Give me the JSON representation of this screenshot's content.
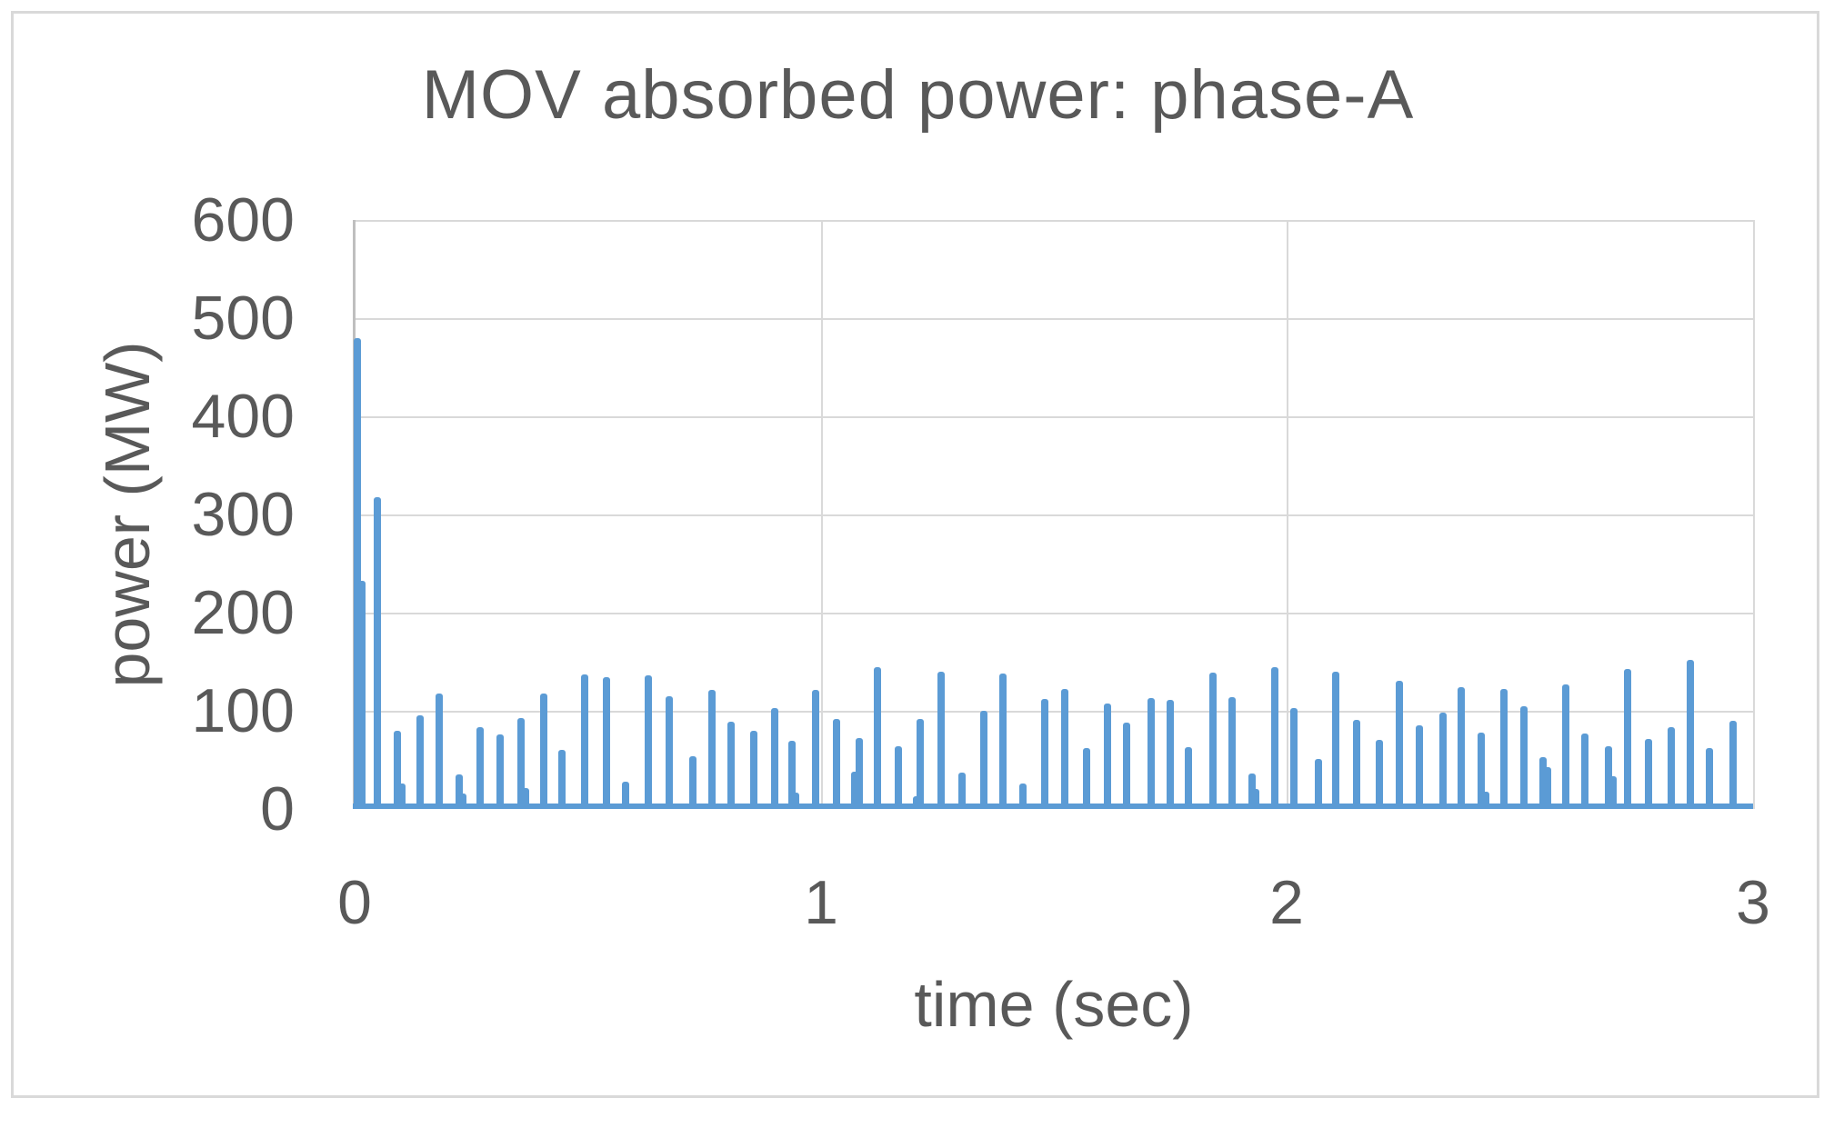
{
  "chart_data": {
    "type": "bar",
    "title": "MOV absorbed power: phase-A",
    "xlabel": "time (sec)",
    "ylabel": "power (MW)",
    "xlim": [
      0,
      3
    ],
    "ylim": [
      0,
      600
    ],
    "x_ticks": [
      0,
      1,
      2,
      3
    ],
    "y_ticks": [
      0,
      100,
      200,
      300,
      400,
      500,
      600
    ],
    "grid": true,
    "legend_position": "none",
    "bar_color": "#5B9BD5",
    "series": [
      {
        "name": "MOV absorbed power phase-A",
        "points": [
          {
            "t": 0.006,
            "p": 480
          },
          {
            "t": 0.016,
            "p": 232
          },
          {
            "t": 0.049,
            "p": 318
          },
          {
            "t": 0.092,
            "p": 80
          },
          {
            "t": 0.102,
            "p": 26
          },
          {
            "t": 0.14,
            "p": 95
          },
          {
            "t": 0.181,
            "p": 118
          },
          {
            "t": 0.224,
            "p": 35
          },
          {
            "t": 0.233,
            "p": 16
          },
          {
            "t": 0.269,
            "p": 83
          },
          {
            "t": 0.312,
            "p": 76
          },
          {
            "t": 0.357,
            "p": 93
          },
          {
            "t": 0.366,
            "p": 21
          },
          {
            "t": 0.406,
            "p": 118
          },
          {
            "t": 0.445,
            "p": 60
          },
          {
            "t": 0.494,
            "p": 137
          },
          {
            "t": 0.54,
            "p": 134
          },
          {
            "t": 0.581,
            "p": 28
          },
          {
            "t": 0.63,
            "p": 136
          },
          {
            "t": 0.675,
            "p": 115
          },
          {
            "t": 0.726,
            "p": 54
          },
          {
            "t": 0.767,
            "p": 121
          },
          {
            "t": 0.808,
            "p": 89
          },
          {
            "t": 0.856,
            "p": 80
          },
          {
            "t": 0.901,
            "p": 103
          },
          {
            "t": 0.938,
            "p": 69
          },
          {
            "t": 0.947,
            "p": 17
          },
          {
            "t": 0.989,
            "p": 121
          },
          {
            "t": 1.034,
            "p": 92
          },
          {
            "t": 1.073,
            "p": 38
          },
          {
            "t": 1.082,
            "p": 72
          },
          {
            "t": 1.121,
            "p": 144
          },
          {
            "t": 1.166,
            "p": 64
          },
          {
            "t": 1.205,
            "p": 13
          },
          {
            "t": 1.213,
            "p": 92
          },
          {
            "t": 1.258,
            "p": 140
          },
          {
            "t": 1.303,
            "p": 37
          },
          {
            "t": 1.35,
            "p": 100
          },
          {
            "t": 1.391,
            "p": 138
          },
          {
            "t": 1.434,
            "p": 26
          },
          {
            "t": 1.48,
            "p": 112
          },
          {
            "t": 1.523,
            "p": 122
          },
          {
            "t": 1.57,
            "p": 62
          },
          {
            "t": 1.615,
            "p": 107
          },
          {
            "t": 1.656,
            "p": 88
          },
          {
            "t": 1.709,
            "p": 113
          },
          {
            "t": 1.75,
            "p": 111
          },
          {
            "t": 1.789,
            "p": 63
          },
          {
            "t": 1.841,
            "p": 139
          },
          {
            "t": 1.882,
            "p": 114
          },
          {
            "t": 1.925,
            "p": 36
          },
          {
            "t": 1.934,
            "p": 20
          },
          {
            "t": 1.974,
            "p": 144
          },
          {
            "t": 2.015,
            "p": 103
          },
          {
            "t": 2.068,
            "p": 51
          },
          {
            "t": 2.105,
            "p": 140
          },
          {
            "t": 2.15,
            "p": 91
          },
          {
            "t": 2.198,
            "p": 70
          },
          {
            "t": 2.241,
            "p": 131
          },
          {
            "t": 2.284,
            "p": 85
          },
          {
            "t": 2.335,
            "p": 98
          },
          {
            "t": 2.374,
            "p": 124
          },
          {
            "t": 2.417,
            "p": 78
          },
          {
            "t": 2.426,
            "p": 18
          },
          {
            "t": 2.466,
            "p": 122
          },
          {
            "t": 2.509,
            "p": 105
          },
          {
            "t": 2.55,
            "p": 53
          },
          {
            "t": 2.559,
            "p": 43
          },
          {
            "t": 2.598,
            "p": 127
          },
          {
            "t": 2.639,
            "p": 77
          },
          {
            "t": 2.69,
            "p": 64
          },
          {
            "t": 2.699,
            "p": 33
          },
          {
            "t": 2.731,
            "p": 143
          },
          {
            "t": 2.776,
            "p": 71
          },
          {
            "t": 2.825,
            "p": 83
          },
          {
            "t": 2.866,
            "p": 152
          },
          {
            "t": 2.907,
            "p": 62
          },
          {
            "t": 2.957,
            "p": 90
          }
        ]
      }
    ]
  },
  "colors": {
    "bar": "#5B9BD5",
    "text": "#595959",
    "gridline": "#D9D9D9",
    "axis_line": "#BFBFBF",
    "frame_border": "#D9D9D9",
    "background": "#FFFFFF"
  }
}
